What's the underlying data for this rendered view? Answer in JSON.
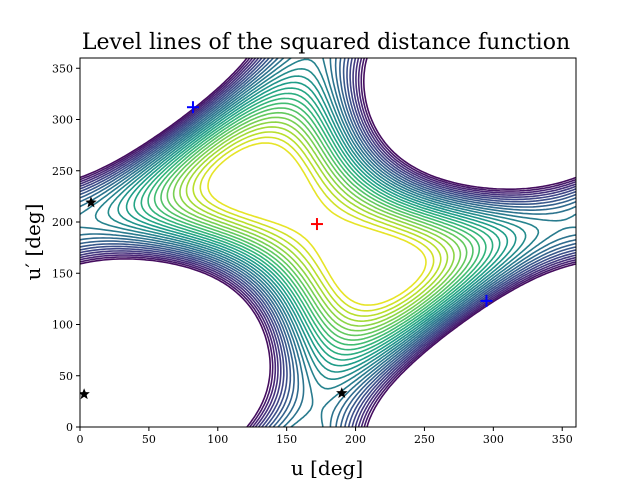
{
  "chart_data": {
    "type": "contour",
    "title": "Level lines of the squared distance function",
    "xlabel": "u [deg]",
    "ylabel": "u′ [deg]",
    "xlim": [
      0,
      360
    ],
    "ylim": [
      0,
      360
    ],
    "xticks": [
      0,
      50,
      100,
      150,
      200,
      250,
      300,
      350
    ],
    "yticks": [
      0,
      50,
      100,
      150,
      200,
      250,
      300,
      350
    ],
    "grid": false,
    "colormap": "viridis",
    "maximum": {
      "x": 172,
      "y": 198,
      "marker": "plus",
      "color": "#ff0000"
    },
    "minima": [
      {
        "x": 82,
        "y": 312,
        "marker": "plus",
        "color": "#0000ff"
      },
      {
        "x": 295,
        "y": 123,
        "marker": "plus",
        "color": "#0000ff"
      }
    ],
    "stars": [
      {
        "x": 8,
        "y": 219,
        "marker": "star",
        "color": "#000000"
      },
      {
        "x": 3,
        "y": 32,
        "marker": "star",
        "color": "#000000"
      },
      {
        "x": 190,
        "y": 33,
        "marker": "star",
        "color": "#000000"
      }
    ]
  }
}
